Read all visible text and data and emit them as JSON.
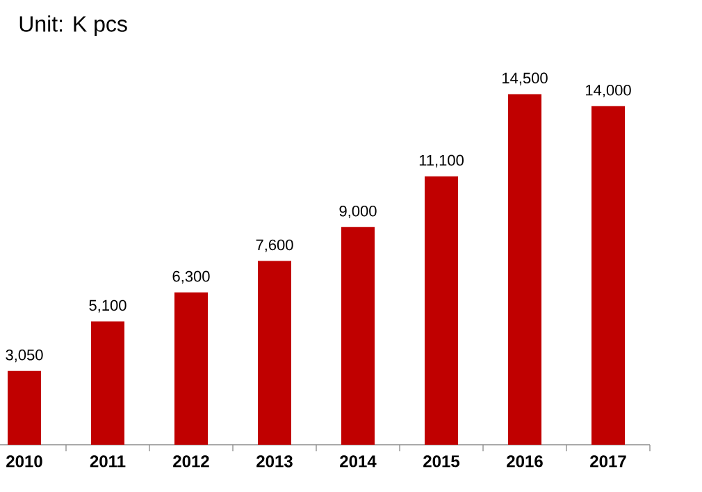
{
  "chart_data": {
    "type": "bar",
    "title": "Unit: K pcs",
    "categories": [
      "2010",
      "2011",
      "2012",
      "2013",
      "2014",
      "2015",
      "2016",
      "2017"
    ],
    "values": [
      3050,
      5100,
      6300,
      7600,
      9000,
      11100,
      14500,
      14000
    ],
    "value_labels": [
      "3,050",
      "5,100",
      "6,300",
      "7,600",
      "9,000",
      "11,100",
      "14,500",
      "14,000"
    ],
    "color": "#c00000"
  }
}
